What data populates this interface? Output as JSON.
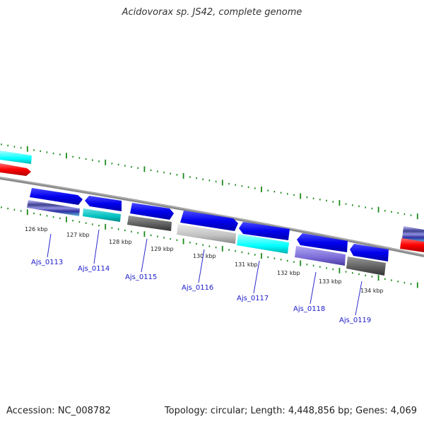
{
  "title": "Acidovorax sp. JS42, complete genome",
  "footer": {
    "accession": "Accession: NC_008782",
    "topology": "Topology: circular; Length: 4,448,856 bp; Genes: 4,069"
  },
  "ticks": [
    {
      "label": "126 kbp",
      "bp": 126000
    },
    {
      "label": "127 kbp",
      "bp": 127000
    },
    {
      "label": "128 kbp",
      "bp": 128000
    },
    {
      "label": "129 kbp",
      "bp": 129000
    },
    {
      "label": "130 kbp",
      "bp": 130000
    },
    {
      "label": "131 kbp",
      "bp": 131000
    },
    {
      "label": "132 kbp",
      "bp": 132000
    },
    {
      "label": "133 kbp",
      "bp": 133000
    },
    {
      "label": "134 kbp",
      "bp": 134000
    }
  ],
  "genes": [
    {
      "name": "Ajs_0113",
      "strand": "+",
      "product_color": "#5a5aa0"
    },
    {
      "name": "Ajs_0114",
      "strand": "-",
      "product_color": "#00c0c0"
    },
    {
      "name": "Ajs_0115",
      "strand": "+",
      "product_color": "#555555"
    },
    {
      "name": "Ajs_0116",
      "strand": "+",
      "product_color": "#bbbbbb"
    },
    {
      "name": "Ajs_0117",
      "strand": "-",
      "product_color": "#00ffff"
    },
    {
      "name": "Ajs_0118",
      "strand": "-",
      "product_color": "#7a6ad8"
    },
    {
      "name": "Ajs_0119",
      "strand": "-",
      "product_color": "#555555"
    }
  ],
  "colors": {
    "cds": "#0000ee",
    "tick": "#1a8a1a",
    "backbone": "#888888",
    "rna": "#ff0000",
    "cyan": "#00ffff"
  }
}
